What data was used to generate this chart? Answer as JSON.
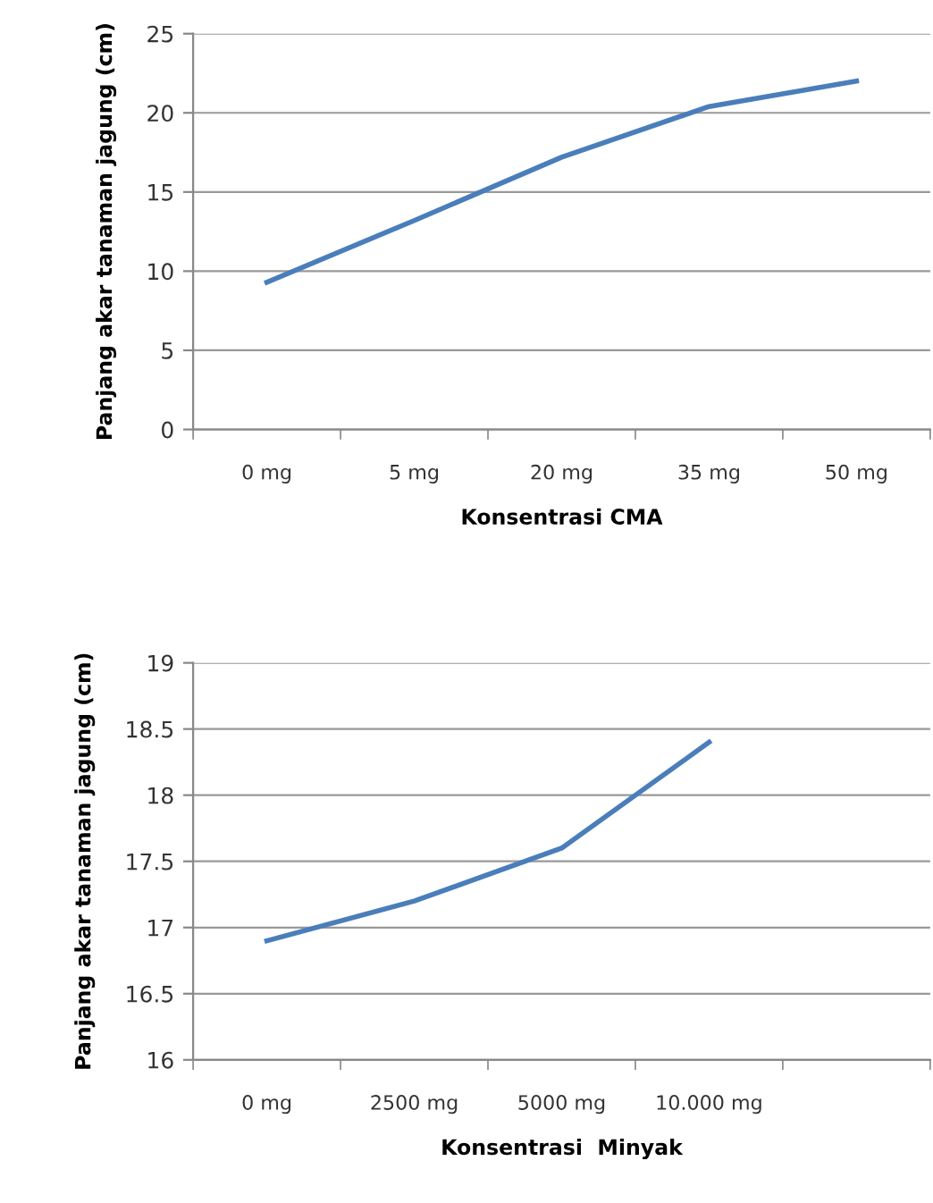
{
  "chart_data": [
    {
      "type": "line",
      "xlabel": "Konsentrasi CMA",
      "ylabel": "Panjang akar tanaman jagung (cm)",
      "categories": [
        "0 mg",
        "5 mg",
        "20 mg",
        "35 mg",
        "50 mg"
      ],
      "series": [
        {
          "color": "#4a7ebb",
          "values": [
            9.3,
            13.2,
            17.2,
            20.4,
            22.0
          ]
        }
      ],
      "ylim": [
        0,
        25
      ],
      "yticks": [
        0,
        5,
        10,
        15,
        20,
        25
      ],
      "grid": "y",
      "legend": false,
      "marker": "none",
      "line_style": "solid"
    },
    {
      "type": "line",
      "xlabel": "Konsentrasi  Minyak",
      "ylabel": "Panjang akar tanaman jagung (cm)",
      "categories": [
        "0 mg",
        "2500 mg",
        "5000 mg",
        "10.000 mg",
        null
      ],
      "series": [
        {
          "color": "#4a7ebb",
          "values": [
            16.9,
            17.2,
            17.6,
            18.4,
            null
          ]
        }
      ],
      "ylim": [
        16,
        19
      ],
      "yticks": [
        16,
        16.5,
        17,
        17.5,
        18,
        18.5,
        19
      ],
      "grid": "y",
      "legend": false,
      "marker": "none",
      "line_style": "solid"
    }
  ]
}
